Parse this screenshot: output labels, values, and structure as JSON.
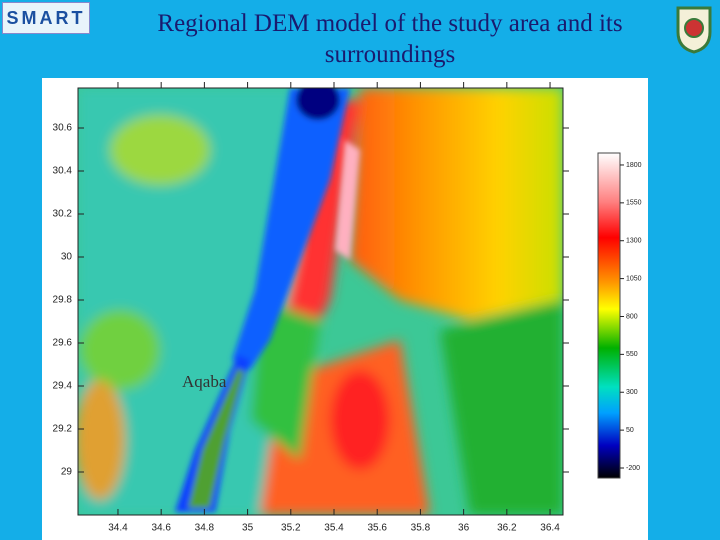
{
  "header": {
    "title": "Regional DEM model of the study area and its surroundings",
    "logo": "SMART"
  },
  "map": {
    "xticks": [
      34.4,
      34.6,
      34.8,
      35,
      35.2,
      35.4,
      35.6,
      35.8,
      36,
      36.2,
      36.4
    ],
    "yticks": [
      30.6,
      30.4,
      30.2,
      30,
      29.8,
      29.6,
      29.4,
      29.2,
      29
    ],
    "xlim": [
      34.215,
      36.46
    ],
    "ylim": [
      28.8,
      30.786
    ],
    "place_label": "Aqaba"
  },
  "colorbar": {
    "ticks": [
      1800,
      1550,
      1300,
      1050,
      800,
      550,
      300,
      50,
      -200
    ],
    "lim": [
      -266,
      1879
    ]
  }
}
